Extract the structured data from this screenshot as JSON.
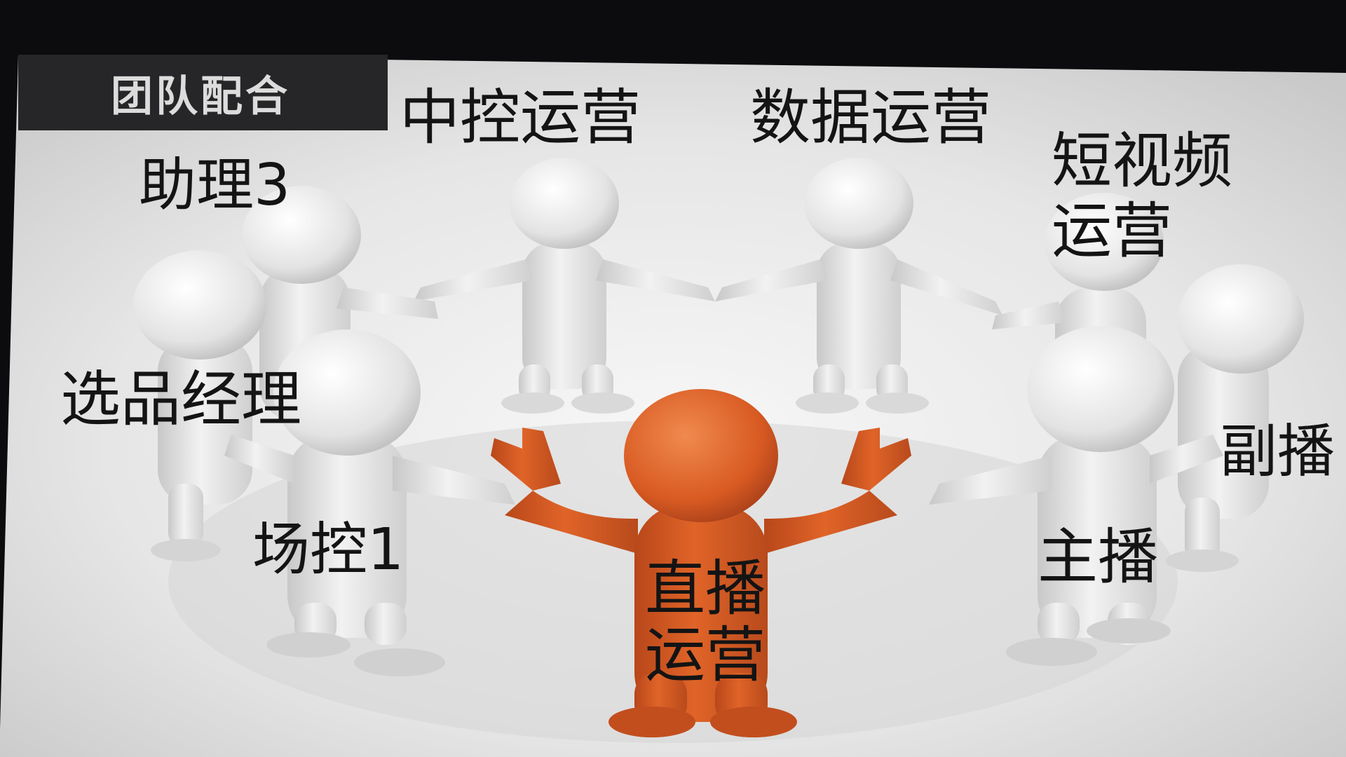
{
  "header": {
    "title": "团队配合"
  },
  "roles": {
    "central_control": "中控运营",
    "data_operations": "数据运营",
    "short_video_line1": "短视频",
    "short_video_line2": "运营",
    "assistant": "助理3",
    "product_manager": "选品经理",
    "field_control": "场控1",
    "live_ops_line1": "直播",
    "live_ops_line2": "运营",
    "host": "主播",
    "co_host": "副播"
  },
  "colors": {
    "central_figure": "#d85a22",
    "white_figures": "#ebebeb",
    "header_band": "#262628",
    "header_text": "#dcdcdc",
    "role_text": "#141414"
  }
}
